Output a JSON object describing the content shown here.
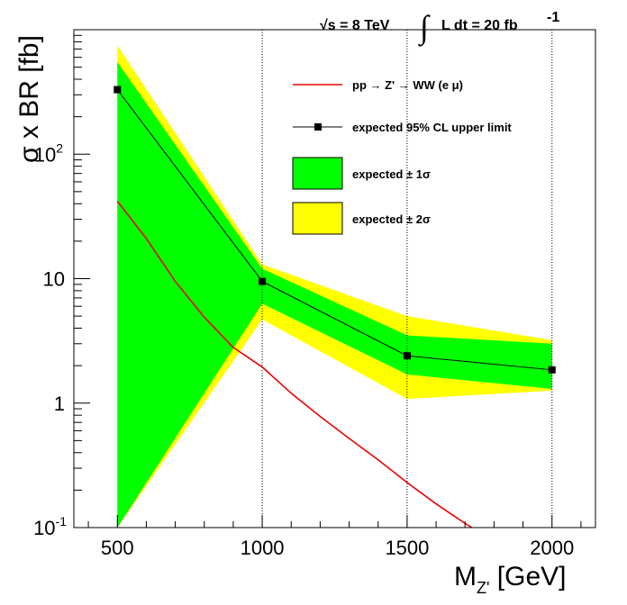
{
  "header": {
    "energy_label": "√s = 8 TeV",
    "integral_sign": "∫",
    "lumi_label": "L dt = 20 fb",
    "lumi_exponent": "-1"
  },
  "chart_data": {
    "type": "line",
    "xlabel": "M",
    "xlabel_sub": "Z'",
    "xlabel_unit": " [GeV]",
    "ylabel": "σ x BR [fb]",
    "xlim": [
      350,
      2150
    ],
    "ylim": [
      0.1,
      1000
    ],
    "ylog": true,
    "x_ticks": [
      500,
      1000,
      1500,
      2000
    ],
    "x_tick_labels": [
      "500",
      "1000",
      "1500",
      "2000"
    ],
    "y_tick_labels": [
      "10",
      "-1",
      "1",
      "10",
      "10",
      "2"
    ],
    "y_ticks": [
      0.1,
      1,
      10,
      100
    ],
    "grid_lines_x": [
      1000,
      1500,
      2000
    ],
    "legend_position": "top-right",
    "series": [
      {
        "name": "pp → Z' → WW (e μ)",
        "style": "line",
        "color": "#ee0000",
        "x": [
          500,
          600,
          700,
          800,
          900,
          1000,
          1100,
          1200,
          1300,
          1400,
          1500,
          1600,
          1700,
          1730
        ],
        "y": [
          42,
          21,
          9.5,
          4.9,
          2.8,
          1.95,
          1.2,
          0.78,
          0.52,
          0.35,
          0.23,
          0.155,
          0.108,
          0.098
        ]
      },
      {
        "name": "expected 95% CL upper limit",
        "style": "line-marker",
        "color": "#000000",
        "x": [
          500,
          1000,
          1500,
          2000
        ],
        "y": [
          330,
          9.5,
          2.4,
          1.85
        ]
      },
      {
        "name": "expected ± 1σ",
        "style": "band",
        "color": "#00ff00",
        "x": [
          500,
          1000,
          1500,
          2000
        ],
        "low": [
          0.1,
          6.3,
          1.7,
          1.3
        ],
        "high": [
          550,
          12,
          3.5,
          3.0
        ]
      },
      {
        "name": "expected ± 2σ",
        "style": "band",
        "color": "#ffff00",
        "x": [
          500,
          1000,
          1500,
          2000
        ],
        "low": [
          0.1,
          4.7,
          1.08,
          1.26
        ],
        "high": [
          750,
          13,
          5.0,
          3.2
        ]
      }
    ],
    "legend": [
      {
        "label": "pp → Z' → WW (e μ)",
        "style": "line",
        "color": "#ee0000"
      },
      {
        "label": "expected 95% CL upper limit",
        "style": "line-marker",
        "color": "#000000"
      },
      {
        "label": "expected ± 1σ",
        "style": "box",
        "color": "#00ff00"
      },
      {
        "label": "expected ± 2σ",
        "style": "box",
        "color": "#ffff00"
      }
    ]
  }
}
